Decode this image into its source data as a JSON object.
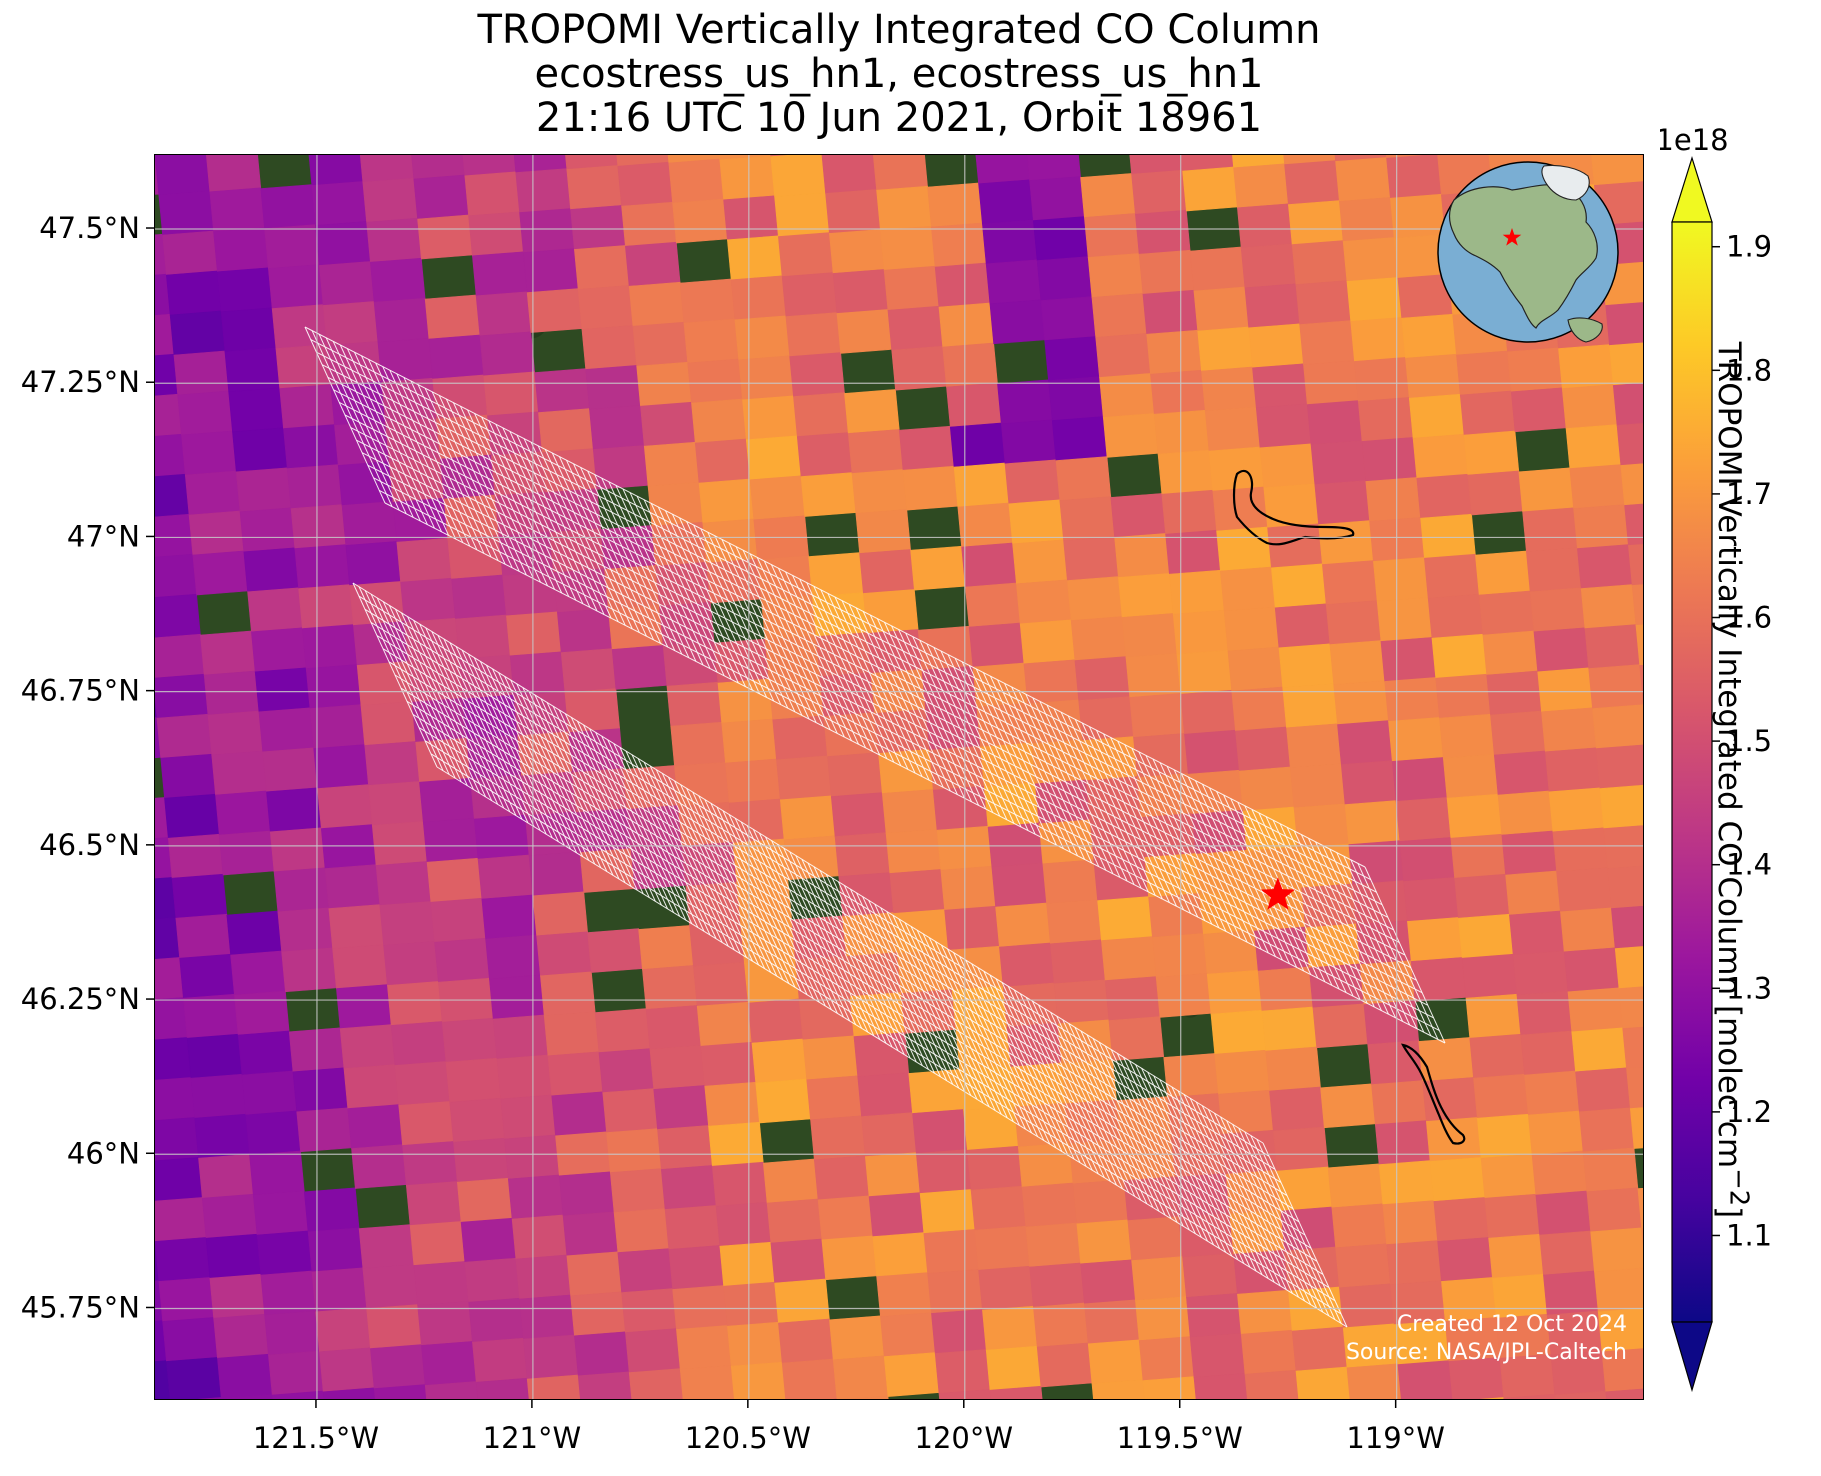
{
  "title": {
    "line1": "TROPOMI Vertically Integrated CO Column",
    "line2": "ecostress_us_hn1, ecostress_us_hn1",
    "line3": "21:16 UTC 10 Jun 2021, Orbit 18961"
  },
  "map": {
    "lon_range": [
      -121.875,
      -118.425
    ],
    "lat_range": [
      45.6,
      47.62
    ],
    "x_ticks": [
      {
        "value": -121.5,
        "label": "121.5°W"
      },
      {
        "value": -121.0,
        "label": "121°W"
      },
      {
        "value": -120.5,
        "label": "120.5°W"
      },
      {
        "value": -120.0,
        "label": "120°W"
      },
      {
        "value": -119.5,
        "label": "119.5°W"
      },
      {
        "value": -119.0,
        "label": "119°W"
      }
    ],
    "y_ticks": [
      {
        "value": 47.5,
        "label": "47.5°N"
      },
      {
        "value": 47.25,
        "label": "47.25°N"
      },
      {
        "value": 47.0,
        "label": "47°N"
      },
      {
        "value": 46.75,
        "label": "46.75°N"
      },
      {
        "value": 46.5,
        "label": "46.5°N"
      },
      {
        "value": 46.25,
        "label": "46.25°N"
      },
      {
        "value": 46.0,
        "label": "46°N"
      },
      {
        "value": 45.75,
        "label": "45.75°N"
      }
    ],
    "grid": true,
    "site_marker": {
      "lon": -119.275,
      "lat": 46.42,
      "symbol": "star",
      "color": "#ff0000"
    },
    "colors": {
      "star": "#ff0000",
      "scene_grid": "#ffffff",
      "coastline": "#000000",
      "vegetation": "#2e4a22",
      "ocean": "#7aaed3",
      "land": "#9cb889"
    },
    "credits": {
      "created": "Created 12 Oct 2024",
      "source": "Source: NASA/JPL-Caltech"
    }
  },
  "colorbar": {
    "colormap": "plasma",
    "multiplier": "1e18",
    "min": 1.03,
    "max": 1.92,
    "ticks": [
      "1.1",
      "1.2",
      "1.3",
      "1.4",
      "1.5",
      "1.6",
      "1.7",
      "1.8",
      "1.9"
    ],
    "label": "TROPOMI Vertically Integrated CO Column [molec cm$^{-2}$]",
    "extend": "both"
  },
  "inset_globe": {
    "marker_color": "#ff0000",
    "marker_symbol": "star"
  }
}
